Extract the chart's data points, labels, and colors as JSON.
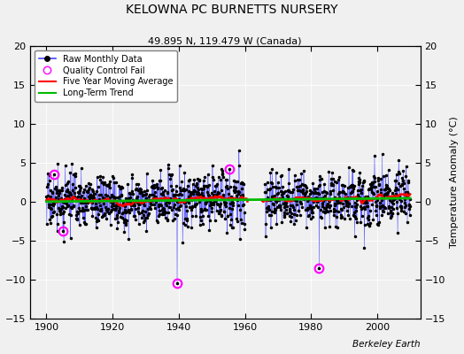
{
  "title": "KELOWNA PC BURNETTS NURSERY",
  "subtitle": "49.895 N, 119.479 W (Canada)",
  "ylabel": "Temperature Anomaly (°C)",
  "xlim": [
    1895,
    2013
  ],
  "ylim": [
    -15,
    20
  ],
  "yticks": [
    -15,
    -10,
    -5,
    0,
    5,
    10,
    15,
    20
  ],
  "xticks": [
    1900,
    1920,
    1940,
    1960,
    1980,
    2000
  ],
  "background_color": "#f0f0f0",
  "plot_bg_color": "#f0f0f0",
  "raw_line_color": "#4444ff",
  "raw_marker_color": "#000000",
  "qc_fail_color": "#ff00ff",
  "moving_avg_color": "#ff0000",
  "trend_color": "#00bb00",
  "watermark": "Berkeley Earth",
  "seed": 17,
  "start_year": 1900.0,
  "end_year": 2010.0,
  "noise_scale": 2.2,
  "trend_slope": 0.004,
  "trend_intercept": 0.0,
  "gap_start": 1960,
  "gap_end": 1966,
  "qc_fail_years": [
    1902.2,
    1905.0,
    1939.5,
    1955.3,
    1982.4
  ],
  "qc_fail_values": [
    3.5,
    -3.8,
    -10.5,
    4.2,
    -8.5
  ],
  "moving_avg_window": 60
}
